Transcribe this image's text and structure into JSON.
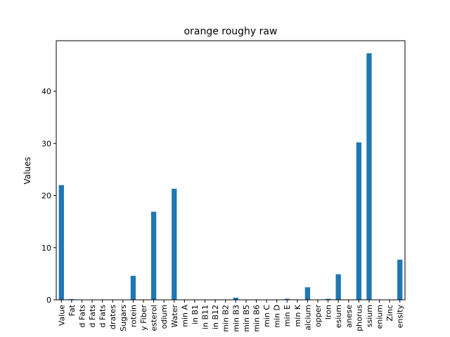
{
  "chart_data": {
    "type": "bar",
    "title": "orange roughy raw",
    "xlabel": "",
    "ylabel": "Values",
    "ylim": [
      0,
      49.7
    ],
    "yticks": [
      0,
      10,
      20,
      30,
      40
    ],
    "grid": false,
    "legend": "none",
    "bar_color": "#1f77b4",
    "categories": [
      "Value",
      "Fat",
      "d Fats",
      "d Fats",
      "d Fats",
      "drates",
      "Sugars",
      "rotein",
      "y Fiber",
      "esterol",
      "odium",
      "Water",
      "min A",
      "in B1",
      "in B11",
      "in B12",
      "min B2",
      "min B3",
      "min B5",
      "min B6",
      "min C",
      "min D",
      "min E",
      "min K",
      "alcium",
      "opper",
      "Iron",
      "esium",
      "anese",
      "phorus",
      "ssium",
      "enium",
      "Zinc",
      "ensity"
    ],
    "values": [
      22.0,
      0.15,
      0,
      0,
      0,
      0,
      0,
      4.6,
      0,
      16.9,
      0,
      21.3,
      0,
      0,
      0,
      0,
      0,
      0.4,
      0,
      0,
      0,
      0,
      0.2,
      0,
      2.4,
      0,
      0.2,
      4.9,
      0,
      30.2,
      47.3,
      0,
      0,
      7.7
    ]
  }
}
